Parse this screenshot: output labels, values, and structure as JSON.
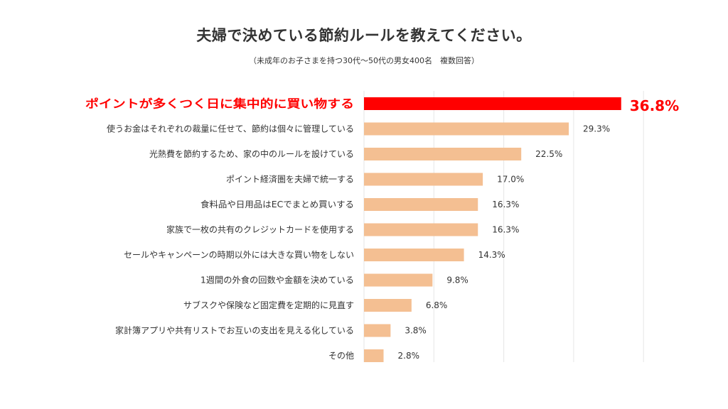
{
  "title": "夫婦で決めている節約ルールを教えてください。",
  "subtitle": "（未成年のお子さまを持つ30代〜50代の男女400名　複数回答）",
  "colors": {
    "highlight": "#ff0000",
    "bar": "#f4bf92",
    "text": "#333333",
    "grid": "#e6e6e6"
  },
  "chart_data": {
    "type": "bar",
    "orientation": "horizontal",
    "grid": true,
    "xlim": [
      0,
      40
    ],
    "categories": [
      "ポイントが多くつく日に集中的に買い物する",
      "使うお金はそれぞれの裁量に任せて、節約は個々に管理している",
      "光熱費を節約するため、家の中のルールを設けている",
      "ポイント経済圏を夫婦で統一する",
      "食料品や日用品はECでまとめ買いする",
      "家族で一枚の共有のクレジットカードを使用する",
      "セールやキャンペーンの時期以外には大きな買い物をしない",
      "1週間の外食の回数や金額を決めている",
      "サブスクや保険など固定費を定期的に見直す",
      "家計簿アプリや共有リストでお互いの支出を見える化している",
      "その他"
    ],
    "values": [
      36.8,
      29.3,
      22.5,
      17.0,
      16.3,
      16.3,
      14.3,
      9.8,
      6.8,
      3.8,
      2.8
    ],
    "value_labels": [
      "36.8%",
      "29.3%",
      "22.5%",
      "17.0%",
      "16.3%",
      "16.3%",
      "14.3%",
      "9.8%",
      "6.8%",
      "3.8%",
      "2.8%"
    ],
    "highlight_index": 0
  }
}
